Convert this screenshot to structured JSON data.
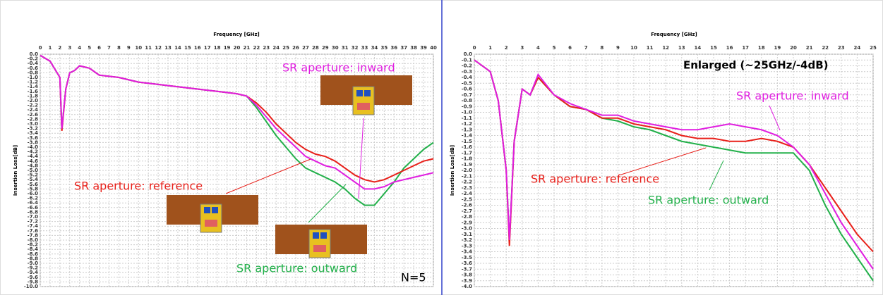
{
  "chart_data": [
    {
      "type": "line",
      "x_label": "Frequency [GHz]",
      "y_label": "Insertion Loss[dB]",
      "annotations": [
        "N=5"
      ],
      "xlim": [
        0,
        40
      ],
      "ylim": [
        -10,
        0
      ],
      "grid": true,
      "xticks": [
        0,
        1,
        2,
        3,
        4,
        5,
        6,
        7,
        8,
        9,
        10,
        11,
        12,
        13,
        14,
        15,
        16,
        17,
        18,
        19,
        20,
        21,
        22,
        23,
        24,
        25,
        26,
        27,
        28,
        29,
        30,
        31,
        32,
        33,
        34,
        35,
        36,
        37,
        38,
        39,
        40
      ],
      "yticks": [
        {
          "value": 0,
          "label": "0.0"
        },
        -0.2,
        -0.4,
        -0.6,
        -0.8,
        {
          "value": -1,
          "label": "-1.0"
        },
        -1.2,
        -1.4,
        -1.6,
        -1.8,
        {
          "value": -2,
          "label": "-2.0"
        },
        -2.2,
        -2.4,
        -2.6,
        -2.8,
        {
          "value": -3,
          "label": "-3.0"
        },
        -3.2,
        -3.4,
        -3.6,
        -3.8,
        {
          "value": -4,
          "label": "-4.0"
        },
        -4.2,
        -4.4,
        -4.6,
        -4.8,
        {
          "value": -5,
          "label": "-5.0"
        },
        -5.2,
        -5.4,
        -5.6,
        -5.8,
        {
          "value": -6,
          "label": "-6.0"
        },
        -6.2,
        -6.4,
        -6.6,
        -6.8,
        {
          "value": -7,
          "label": "-7.0"
        },
        -7.2,
        -7.4,
        -7.6,
        -7.8,
        {
          "value": -8,
          "label": "-8.0"
        },
        -8.2,
        -8.4,
        -8.6,
        -8.8,
        {
          "value": -9,
          "label": "-9.0"
        },
        -9.2,
        -9.4,
        -9.6,
        -9.8,
        {
          "value": -10,
          "label": "-10.0"
        }
      ],
      "x": [
        0,
        1,
        2,
        2.2,
        2.6,
        3,
        3.5,
        4,
        5,
        6,
        8,
        10,
        12,
        14,
        16,
        18,
        20,
        21,
        22,
        23,
        24,
        25,
        26,
        27,
        28,
        29,
        30,
        31,
        32,
        33,
        34,
        35,
        36,
        37,
        38,
        39,
        40
      ],
      "series": [
        {
          "name": "SR aperture: outward",
          "color": "#22b04a",
          "values": [
            -0.05,
            -0.3,
            -1.0,
            -3.2,
            -1.5,
            -0.8,
            -0.7,
            -0.5,
            -0.6,
            -0.9,
            -1.0,
            -1.2,
            -1.3,
            -1.4,
            -1.5,
            -1.6,
            -1.7,
            -1.8,
            -2.3,
            -2.9,
            -3.5,
            -4.0,
            -4.5,
            -4.9,
            -5.1,
            -5.3,
            -5.5,
            -5.8,
            -6.2,
            -6.5,
            -6.5,
            -6.0,
            -5.5,
            -4.9,
            -4.5,
            -4.1,
            -3.8
          ]
        },
        {
          "name": "SR aperture: reference",
          "color": "#e8201a",
          "values": [
            -0.05,
            -0.3,
            -1.0,
            -3.3,
            -1.5,
            -0.8,
            -0.7,
            -0.5,
            -0.6,
            -0.9,
            -1.0,
            -1.2,
            -1.3,
            -1.4,
            -1.5,
            -1.6,
            -1.7,
            -1.8,
            -2.1,
            -2.5,
            -3.0,
            -3.4,
            -3.8,
            -4.1,
            -4.3,
            -4.4,
            -4.6,
            -4.9,
            -5.2,
            -5.4,
            -5.5,
            -5.4,
            -5.2,
            -5.0,
            -4.8,
            -4.6,
            -4.5
          ]
        },
        {
          "name": "SR aperture: inward",
          "color": "#e01ee0",
          "values": [
            -0.05,
            -0.3,
            -1.0,
            -3.2,
            -1.5,
            -0.8,
            -0.7,
            -0.5,
            -0.6,
            -0.9,
            -1.0,
            -1.2,
            -1.3,
            -1.4,
            -1.5,
            -1.6,
            -1.7,
            -1.8,
            -2.2,
            -2.7,
            -3.2,
            -3.6,
            -4.0,
            -4.4,
            -4.6,
            -4.8,
            -4.9,
            -5.2,
            -5.5,
            -5.8,
            -5.8,
            -5.7,
            -5.5,
            -5.4,
            -5.3,
            -5.2,
            -5.1
          ]
        }
      ]
    },
    {
      "type": "line",
      "x_label": "Frequency [GHz]",
      "y_label": "Insertion Loss[dB]",
      "annotations": [
        "Enlarged (~25GHz/-4dB)"
      ],
      "xlim": [
        0,
        25
      ],
      "ylim": [
        -4,
        0
      ],
      "grid": true,
      "xticks": [
        0,
        1,
        2,
        3,
        4,
        5,
        6,
        7,
        8,
        9,
        10,
        11,
        12,
        13,
        14,
        15,
        16,
        17,
        18,
        19,
        20,
        21,
        22,
        23,
        24,
        25
      ],
      "yticks": [
        {
          "value": 0,
          "label": "0.0"
        },
        -0.1,
        -0.2,
        -0.3,
        -0.4,
        -0.5,
        -0.6,
        -0.7,
        -0.8,
        -0.9,
        {
          "value": -1,
          "label": "-1.0"
        },
        -1.1,
        -1.2,
        -1.3,
        -1.4,
        -1.5,
        -1.6,
        -1.7,
        -1.8,
        -1.9,
        {
          "value": -2,
          "label": "-2.0"
        },
        -2.1,
        -2.2,
        -2.3,
        -2.4,
        -2.5,
        -2.6,
        -2.7,
        -2.8,
        -2.9,
        {
          "value": -3,
          "label": "-3.0"
        },
        -3.1,
        -3.2,
        -3.3,
        -3.4,
        -3.5,
        -3.6,
        -3.7,
        -3.8,
        -3.9,
        {
          "value": -4,
          "label": "-4.0"
        }
      ],
      "x": [
        0,
        1,
        1.5,
        2,
        2.2,
        2.5,
        3,
        3.5,
        4,
        5,
        6,
        7,
        8,
        9,
        10,
        11,
        12,
        13,
        14,
        15,
        16,
        17,
        18,
        19,
        20,
        21,
        22,
        23,
        24,
        25
      ],
      "series": [
        {
          "name": "SR aperture: outward",
          "color": "#22b04a",
          "values": [
            -0.1,
            -0.3,
            -0.8,
            -2.0,
            -3.2,
            -1.5,
            -0.6,
            -0.7,
            -0.4,
            -0.7,
            -0.9,
            -0.95,
            -1.1,
            -1.15,
            -1.25,
            -1.3,
            -1.4,
            -1.5,
            -1.55,
            -1.6,
            -1.65,
            -1.7,
            -1.7,
            -1.7,
            -1.7,
            -2.0,
            -2.6,
            -3.1,
            -3.5,
            -3.9
          ]
        },
        {
          "name": "SR aperture: reference",
          "color": "#e8201a",
          "values": [
            -0.1,
            -0.3,
            -0.8,
            -2.0,
            -3.3,
            -1.5,
            -0.6,
            -0.7,
            -0.4,
            -0.7,
            -0.9,
            -0.95,
            -1.1,
            -1.1,
            -1.2,
            -1.25,
            -1.3,
            -1.4,
            -1.45,
            -1.45,
            -1.5,
            -1.5,
            -1.45,
            -1.5,
            -1.6,
            -1.9,
            -2.3,
            -2.7,
            -3.1,
            -3.4
          ]
        },
        {
          "name": "SR aperture: inward",
          "color": "#e01ee0",
          "values": [
            -0.1,
            -0.3,
            -0.8,
            -2.0,
            -3.2,
            -1.5,
            -0.6,
            -0.7,
            -0.35,
            -0.7,
            -0.85,
            -0.95,
            -1.05,
            -1.05,
            -1.15,
            -1.2,
            -1.25,
            -1.3,
            -1.3,
            -1.25,
            -1.2,
            -1.25,
            -1.3,
            -1.4,
            -1.6,
            -1.9,
            -2.4,
            -2.9,
            -3.3,
            -3.7
          ]
        }
      ]
    }
  ]
}
